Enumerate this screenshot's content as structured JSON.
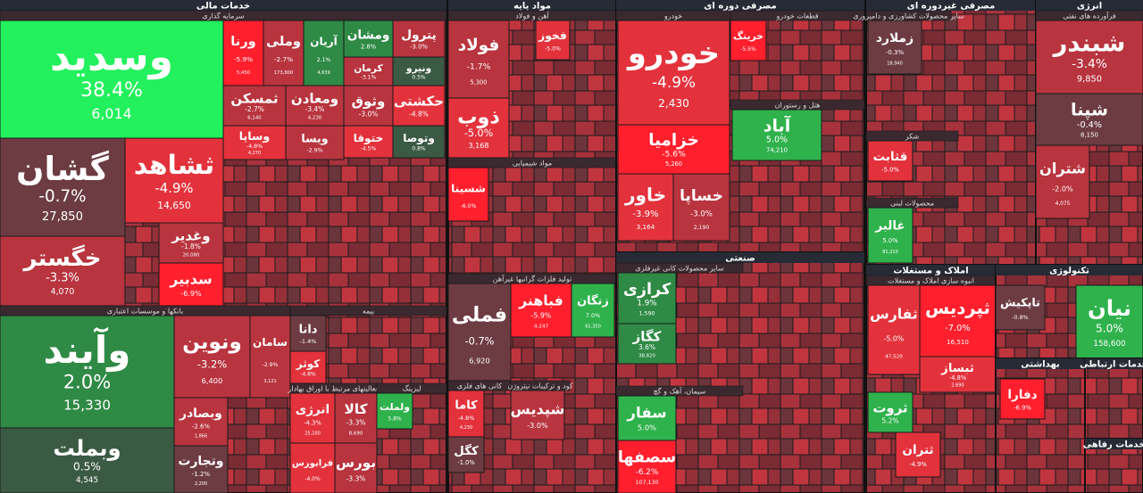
{
  "sectors": [
    {
      "title": "خدمات مالی",
      "groups": [
        {
          "title": "سرمایه گذاری",
          "tiles": [
            {
              "name": "وسدید",
              "change": "38.4%",
              "price": "6,014"
            },
            {
              "name": "گشان",
              "change": "-0.7%",
              "price": "27,850"
            },
            {
              "name": "ثشاهد",
              "change": "-4.9%",
              "price": "14,650"
            },
            {
              "name": "خگستر",
              "change": "-3.3%",
              "price": "4,070"
            },
            {
              "name": "وغدیر",
              "change": "-1.8%",
              "price": "20,080"
            },
            {
              "name": "سدبیر",
              "change": "-6.9%"
            },
            {
              "name": "ورنا",
              "change": "-5.9%",
              "price": "5,450"
            },
            {
              "name": "وملی",
              "change": "-2.7%",
              "price": "173,800"
            },
            {
              "name": "آریان",
              "change": "2.1%",
              "price": "4,639"
            },
            {
              "name": "ومشان",
              "change": "2.8%"
            },
            {
              "name": "پترول",
              "change": "-3.0%"
            },
            {
              "name": "کرمان",
              "change": "-3.1%"
            },
            {
              "name": "ونیرو",
              "change": "0.5%"
            },
            {
              "name": "ثمسکن",
              "change": "-2.7%",
              "price": "6,140"
            },
            {
              "name": "ومعادن",
              "change": "-3.4%",
              "price": "4,230"
            },
            {
              "name": "وثوق",
              "change": "-3.0%"
            },
            {
              "name": "حکشتی",
              "change": "-4.8%"
            },
            {
              "name": "وساپا",
              "change": "-4.8%",
              "price": "4,270"
            },
            {
              "name": "ویسا",
              "change": "-2.9%"
            },
            {
              "name": "ختوقا",
              "change": "-4.5%"
            },
            {
              "name": "وتوصا",
              "change": "0.8%"
            }
          ]
        },
        {
          "title": "بانکها و موسسات اعتباری",
          "tiles": [
            {
              "name": "وآیند",
              "change": "2.0%",
              "price": "15,330"
            },
            {
              "name": "وبملت",
              "change": "0.5%",
              "price": "4,545"
            },
            {
              "name": "ونوین",
              "change": "-3.2%",
              "price": "6,400"
            },
            {
              "name": "سامان",
              "change": "-2.9%",
              "price": "3,121"
            },
            {
              "name": "وبصادر",
              "change": "-2.6%",
              "price": "1,866"
            },
            {
              "name": "وتجارت",
              "change": "-1.2%",
              "price": "2,200"
            }
          ]
        },
        {
          "title": "بیمه",
          "tiles": [
            {
              "name": "دانا",
              "change": "-1.4%"
            },
            {
              "name": "کوثر",
              "change": "-4.8%"
            }
          ]
        },
        {
          "title": "فعالیتهای مرتبط با اوراق بهادار",
          "tiles": [
            {
              "name": "انرژی",
              "change": "-4.3%",
              "price": "25,100"
            },
            {
              "name": "کالا",
              "change": "-3.3%",
              "price": "8,690"
            },
            {
              "name": "فرابورس",
              "change": "-4.0%"
            },
            {
              "name": "بورس",
              "change": "-3.3%"
            }
          ]
        },
        {
          "title": "لیزینگ",
          "tiles": [
            {
              "name": "ولملت",
              "change": "5.8%"
            }
          ]
        }
      ]
    },
    {
      "title": "مواد پایه",
      "groups": [
        {
          "title": "آهن و فولاد",
          "tiles": [
            {
              "name": "فولاد",
              "change": "-1.7%",
              "price": "5,300"
            },
            {
              "name": "ذوب",
              "change": "-5.0%",
              "price": "3,168"
            },
            {
              "name": "فخوز",
              "change": "-5.0%"
            }
          ]
        },
        {
          "title": "مواد شیمیایی",
          "tiles": [
            {
              "name": "شسینا",
              "change": "-6.0%"
            }
          ]
        },
        {
          "title": "تولید فلزات گرانبها غیرآهن",
          "tiles": [
            {
              "name": "فملی",
              "change": "-0.7%",
              "price": "6,920"
            },
            {
              "name": "فباهنر",
              "change": "-5.9%",
              "price": "4,247"
            },
            {
              "name": "زنگان",
              "change": "7.0%",
              "price": "61,350"
            }
          ]
        },
        {
          "title": "کانی های فلزی",
          "tiles": [
            {
              "name": "کاما",
              "change": "-4.8%",
              "price": "4,230"
            },
            {
              "name": "کگل",
              "change": "-1.0%"
            }
          ]
        },
        {
          "title": "کود و ترکیبات نیتروژن",
          "tiles": [
            {
              "name": "شپدیس",
              "change": "-3.0%"
            }
          ]
        }
      ]
    },
    {
      "title": "مصرفی دوره ای",
      "groups": [
        {
          "title": "خودرو",
          "tiles": [
            {
              "name": "خودرو",
              "change": "-4.9%",
              "price": "2,430"
            },
            {
              "name": "خزامیا",
              "change": "-5.6%",
              "price": "5,260"
            },
            {
              "name": "خاور",
              "change": "-3.9%",
              "price": "3,164"
            },
            {
              "name": "خساپا",
              "change": "-3.0%",
              "price": "2,190"
            }
          ]
        },
        {
          "title": "قطعات خودرو",
          "tiles": [
            {
              "name": "خرینگ",
              "change": "-5.5%"
            }
          ]
        },
        {
          "title": "هتل و رستوران",
          "tiles": [
            {
              "name": "آباد",
              "change": "5.0%",
              "price": "74,210"
            }
          ]
        }
      ]
    },
    {
      "title": "صنعتی",
      "groups": [
        {
          "title": "سایر محصولات کانی غیرفلزی",
          "tiles": [
            {
              "name": "کرازی",
              "change": "1.9%",
              "price": "1,590"
            },
            {
              "name": "کگاز",
              "change": "3.6%",
              "price": "38,820"
            }
          ]
        },
        {
          "title": "سیمان، آهک و گچ",
          "tiles": [
            {
              "name": "سفار",
              "change": "5.0%"
            },
            {
              "name": "سصفها",
              "change": "-6.2%",
              "price": "107,130"
            }
          ]
        }
      ]
    },
    {
      "title": "مصرفی غیردوره ای",
      "groups": [
        {
          "title": "سایر محصولات کشاورزی و دامپروری",
          "tiles": [
            {
              "name": "زملارد",
              "change": "-0.3%",
              "price": "18,940"
            }
          ]
        },
        {
          "title": "شکر",
          "tiles": [
            {
              "name": "قثابت",
              "change": "-5.0%"
            }
          ]
        },
        {
          "title": "محصولات لبنی",
          "tiles": [
            {
              "name": "غالبر",
              "change": "5.0%",
              "price": "81,210"
            }
          ]
        }
      ]
    },
    {
      "title": "انرژی",
      "groups": [
        {
          "title": "فرآورده های نفتی",
          "tiles": [
            {
              "name": "شبندر",
              "change": "-3.4%",
              "price": "9,850"
            },
            {
              "name": "شپنا",
              "change": "-0.4%",
              "price": "8,150"
            },
            {
              "name": "شتران",
              "change": "-2.0%",
              "price": "4,075"
            }
          ]
        }
      ]
    },
    {
      "title": "املاک و مستغلات",
      "groups": [
        {
          "title": "انبوه سازی املاک و مستغلات",
          "tiles": [
            {
              "name": "ثپردیس",
              "change": "-7.0%",
              "price": "16,510"
            },
            {
              "name": "ثفارس",
              "change": "-5.0%",
              "price": "47,520"
            },
            {
              "name": "ثبساز",
              "change": "-4.8%",
              "price": "2,690"
            },
            {
              "name": "ثروت",
              "change": "5.2%"
            },
            {
              "name": "ثتران",
              "change": "-4.9%"
            }
          ]
        }
      ]
    },
    {
      "title": "تکنولوژی",
      "groups": [
        {
          "tiles": [
            {
              "name": "نیان",
              "change": "5.0%",
              "price": "158,600"
            },
            {
              "name": "تاپکیش",
              "change": "-0.8%"
            }
          ]
        }
      ]
    },
    {
      "title": "بهداشتی",
      "groups": [
        {
          "tiles": [
            {
              "name": "دفارا",
              "change": "-6.9%"
            }
          ]
        }
      ]
    },
    {
      "title": "خدمات ارتباطی",
      "groups": []
    },
    {
      "title": "خدمات رفاهی",
      "groups": []
    }
  ]
}
